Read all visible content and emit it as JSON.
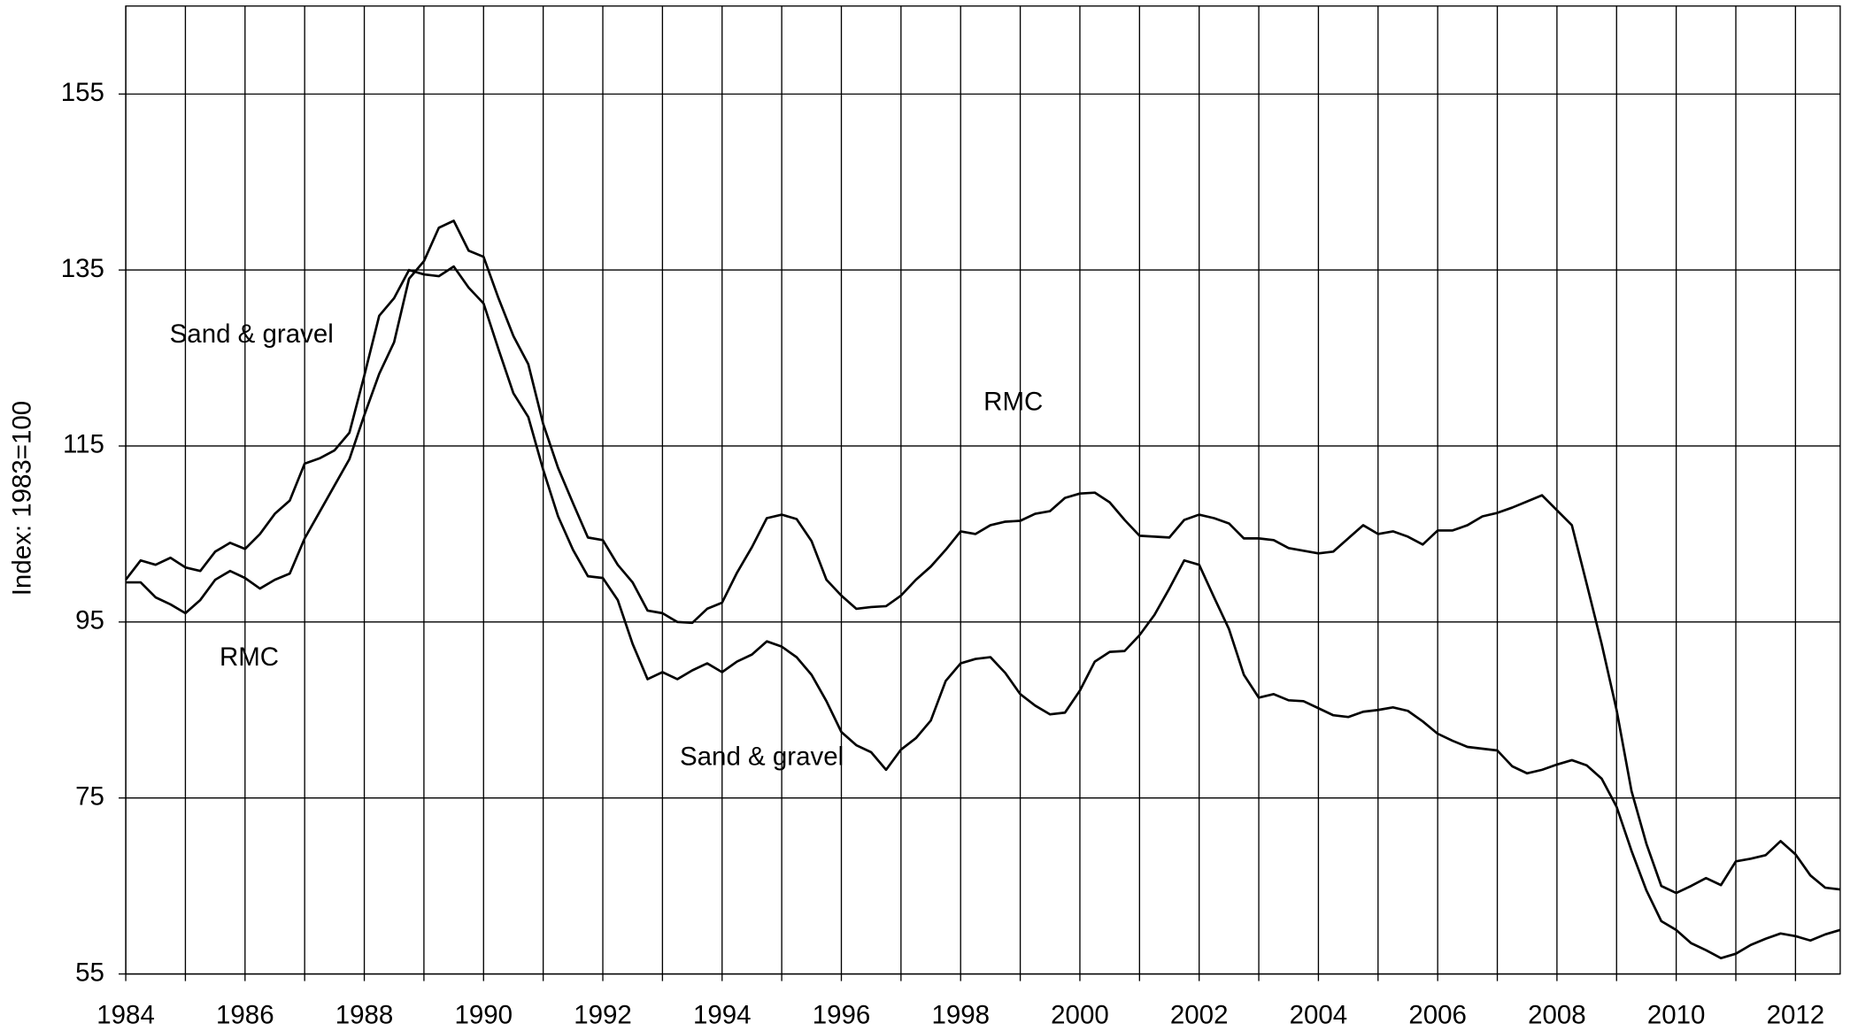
{
  "chart_data": {
    "type": "line",
    "y_label": "Index: 1983=100",
    "x": [
      1984,
      1984.25,
      1984.5,
      1984.75,
      1985,
      1985.25,
      1985.5,
      1985.75,
      1986,
      1986.25,
      1986.5,
      1986.75,
      1987,
      1987.25,
      1987.5,
      1987.75,
      1988,
      1988.25,
      1988.5,
      1988.75,
      1989,
      1989.25,
      1989.5,
      1989.75,
      1990,
      1990.25,
      1990.5,
      1990.75,
      1991,
      1991.25,
      1991.5,
      1991.75,
      1992,
      1992.25,
      1992.5,
      1992.75,
      1993,
      1993.25,
      1993.5,
      1993.75,
      1994,
      1994.25,
      1994.5,
      1994.75,
      1995,
      1995.25,
      1995.5,
      1995.75,
      1996,
      1996.25,
      1996.5,
      1996.75,
      1997,
      1997.25,
      1997.5,
      1997.75,
      1998,
      1998.25,
      1998.5,
      1998.75,
      1999,
      1999.25,
      1999.5,
      1999.75,
      2000,
      2000.25,
      2000.5,
      2000.75,
      2001,
      2001.25,
      2001.5,
      2001.75,
      2002,
      2002.25,
      2002.5,
      2002.75,
      2003,
      2003.25,
      2003.5,
      2003.75,
      2004,
      2004.25,
      2004.5,
      2004.75,
      2005,
      2005.25,
      2005.5,
      2005.75,
      2006,
      2006.25,
      2006.5,
      2006.75,
      2007,
      2007.25,
      2007.5,
      2007.75,
      2008,
      2008.25,
      2008.5,
      2008.75,
      2009,
      2009.25,
      2009.5,
      2009.75,
      2010,
      2010.25,
      2010.5,
      2010.75,
      2011,
      2011.25,
      2011.5,
      2011.75,
      2012,
      2012.25,
      2012.5,
      2012.75
    ],
    "series": [
      {
        "name": "Sand & gravel",
        "color": "#000000",
        "values": [
          99.8,
          102,
          101.5,
          102.3,
          101.2,
          100.8,
          103,
          104,
          103.3,
          105,
          107.3,
          108.8,
          113,
          113.6,
          114.5,
          116.5,
          123,
          129.8,
          131.8,
          135,
          134.5,
          134.3,
          135.4,
          133,
          131.2,
          126,
          121,
          118.3,
          112.3,
          107,
          103.2,
          100.2,
          100,
          97.5,
          92.5,
          88.5,
          89.3,
          88.5,
          89.5,
          90.3,
          89.3,
          90.5,
          91.3,
          92.8,
          92.2,
          91,
          89,
          86,
          82.5,
          81,
          80.2,
          78.2,
          80.5,
          81.8,
          83.8,
          88.3,
          90.3,
          90.8,
          91,
          89.2,
          86.8,
          85.5,
          84.5,
          84.7,
          87.2,
          90.5,
          91.6,
          91.7,
          93.5,
          95.8,
          98.8,
          102,
          101.5,
          97.8,
          94.2,
          89,
          86.4,
          86.8,
          86.1,
          86,
          85.2,
          84.4,
          84.2,
          84.8,
          85,
          85.3,
          84.9,
          83.7,
          82.3,
          81.5,
          80.8,
          80.6,
          80.4,
          78.6,
          77.8,
          78.2,
          78.8,
          79.3,
          78.7,
          77.2,
          74,
          69,
          64.5,
          61,
          60,
          58.5,
          57.7,
          56.8,
          57.3,
          58.3,
          59,
          59.6,
          59.3,
          58.8,
          59.5,
          60
        ]
      },
      {
        "name": "RMC",
        "color": "#000000",
        "values": [
          99.5,
          99.5,
          97.8,
          97,
          96,
          97.5,
          99.8,
          100.8,
          100,
          98.8,
          99.8,
          100.5,
          104.5,
          107.5,
          110.5,
          113.5,
          118.5,
          123.2,
          126.8,
          134,
          136,
          139.8,
          140.6,
          137.2,
          136.5,
          131.8,
          127.5,
          124.3,
          117.5,
          112.5,
          108.5,
          104.6,
          104.3,
          101.5,
          99.5,
          96.3,
          96,
          95,
          94.9,
          96.5,
          97.2,
          100.6,
          103.5,
          106.8,
          107.2,
          106.7,
          104.2,
          99.8,
          98,
          96.5,
          96.7,
          96.8,
          98,
          99.8,
          101.3,
          103.2,
          105.3,
          105,
          106,
          106.4,
          106.5,
          107.3,
          107.6,
          109.1,
          109.6,
          109.7,
          108.6,
          106.6,
          104.8,
          104.7,
          104.6,
          106.6,
          107.2,
          106.8,
          106.2,
          104.5,
          104.5,
          104.3,
          103.4,
          103.1,
          102.8,
          103,
          104.5,
          106,
          105,
          105.3,
          104.7,
          103.8,
          105.4,
          105.4,
          106,
          107,
          107.4,
          108,
          108.7,
          109.4,
          107.7,
          106,
          99.3,
          92.5,
          85,
          75.8,
          69.8,
          65,
          64.2,
          65,
          65.9,
          65.1,
          67.8,
          68.1,
          68.5,
          70.1,
          68.6,
          66.2,
          64.8,
          64.6
        ]
      }
    ],
    "annotations": [
      "Sand & gravel",
      "RMC",
      "RMC",
      "Sand & gravel"
    ],
    "xlim": [
      1984,
      2012.75
    ],
    "xticks": [
      1984,
      1986,
      1988,
      1990,
      1992,
      1994,
      1996,
      1998,
      2000,
      2002,
      2004,
      2006,
      2008,
      2010,
      2012
    ],
    "xminor": [
      1985,
      1987,
      1989,
      1991,
      1993,
      1995,
      1997,
      1999,
      2001,
      2003,
      2005,
      2007,
      2009,
      2011
    ],
    "ylim": [
      55,
      165
    ],
    "yticks": [
      55,
      75,
      95,
      115,
      135,
      155
    ],
    "grid": true
  }
}
